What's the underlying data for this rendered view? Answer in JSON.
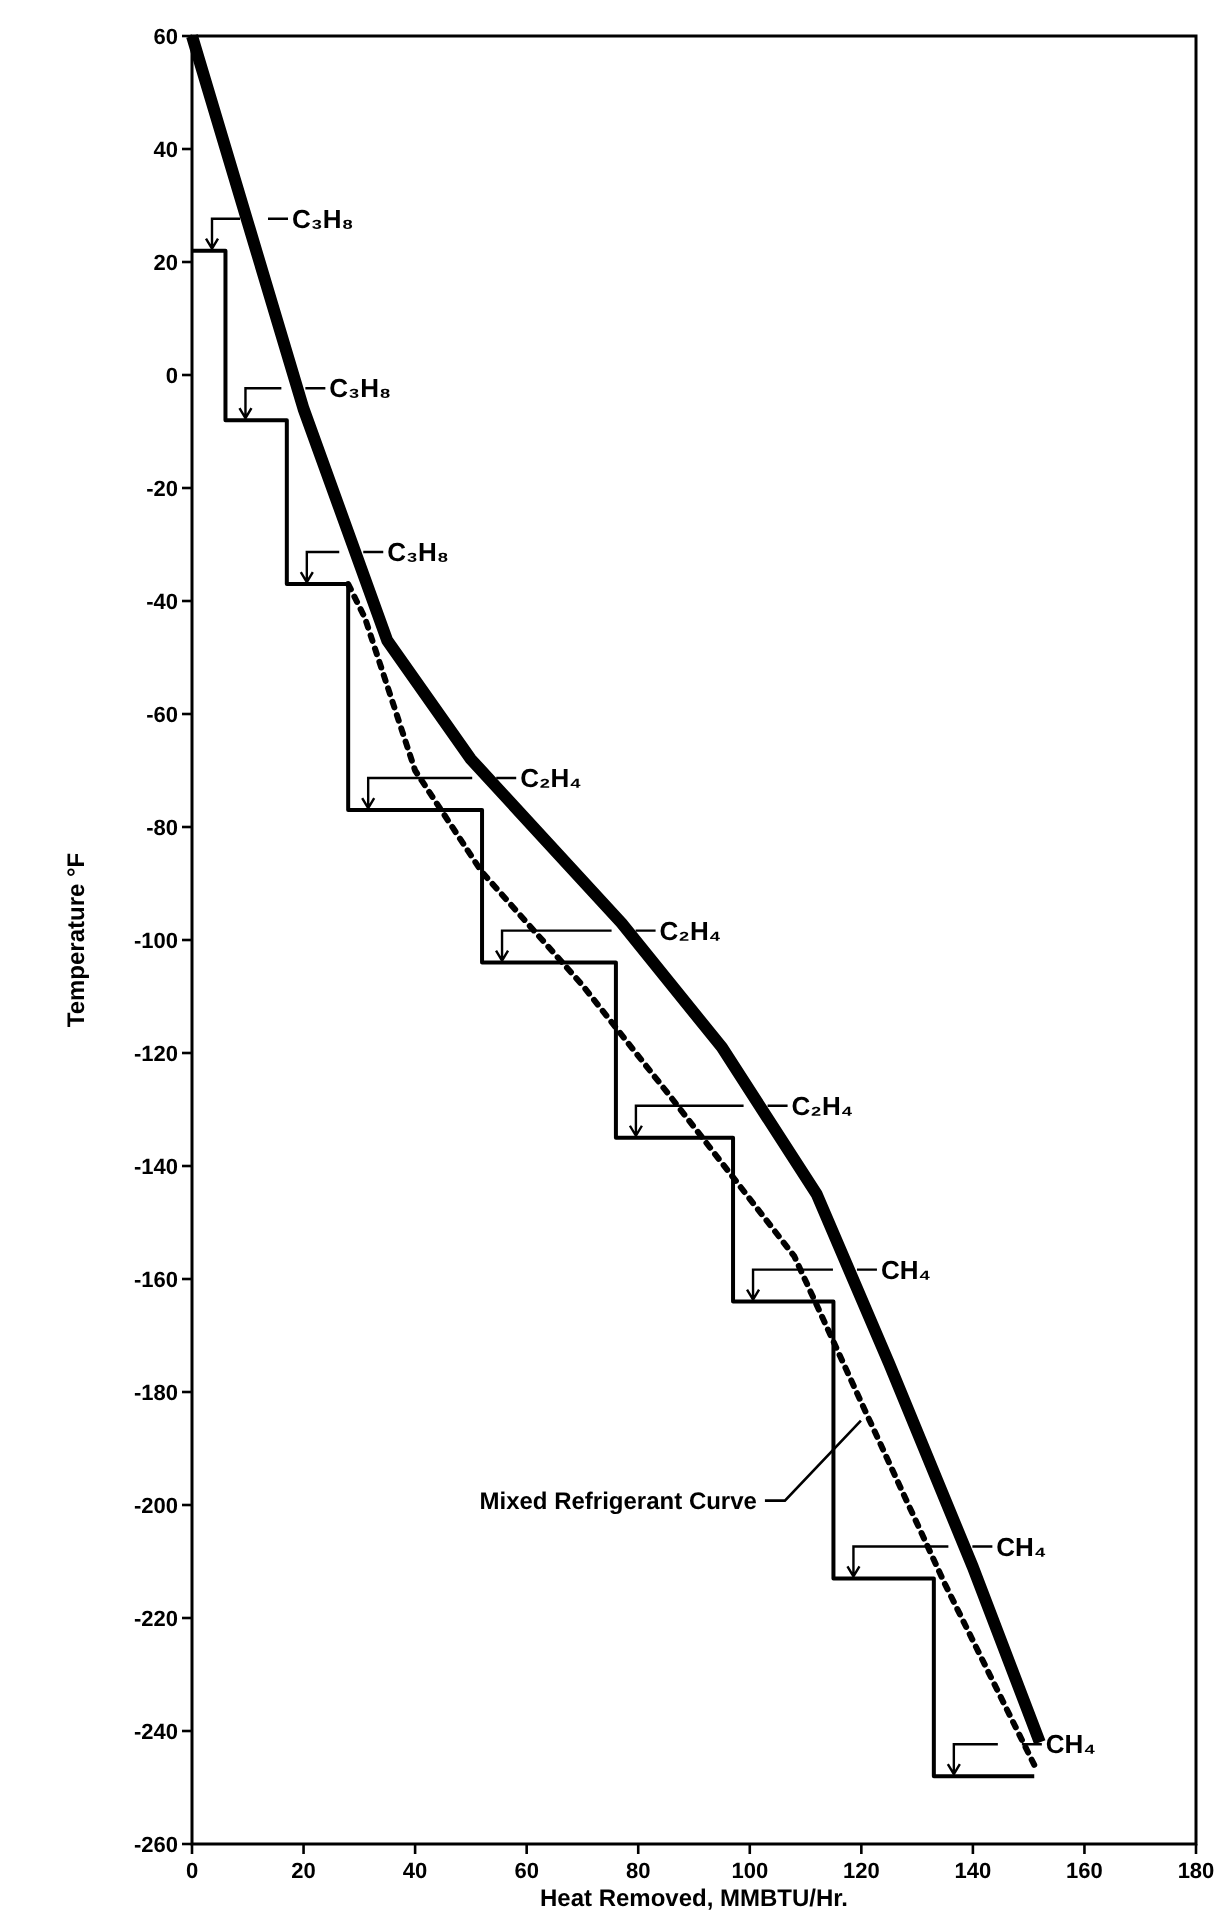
{
  "chart_data": {
    "type": "line",
    "xlabel": "Heat Removed, MMBTU/Hr.",
    "ylabel": "Temperature °F",
    "xlim": [
      0,
      180
    ],
    "ylim": [
      -260,
      60
    ],
    "xticks": [
      0,
      20,
      40,
      60,
      80,
      100,
      120,
      140,
      160,
      180
    ],
    "yticks": [
      60,
      40,
      20,
      0,
      -20,
      -40,
      -60,
      -80,
      -100,
      -120,
      -140,
      -160,
      -180,
      -200,
      -220,
      -240,
      -260
    ],
    "grid": false,
    "legend": false,
    "marker": "none",
    "series": [
      {
        "color": "#000000",
        "line_style": "solid",
        "x": [
          0,
          6,
          6,
          17,
          17,
          28,
          28,
          52,
          52,
          76,
          76,
          97,
          97,
          115,
          115,
          133,
          133,
          151
        ],
        "values": [
          22,
          22,
          -8,
          -8,
          -37,
          -37,
          -77,
          -77,
          -104,
          -104,
          -135,
          -135,
          -164,
          -164,
          -213,
          -213,
          -248,
          -248
        ]
      },
      {
        "color": "#000000",
        "line_style": "solid",
        "x": [
          0,
          10,
          20,
          35,
          50,
          77,
          95,
          112,
          125,
          140,
          152
        ],
        "values": [
          60,
          27,
          -6,
          -47,
          -68,
          -97,
          -119,
          -145,
          -175,
          -211,
          -242
        ]
      },
      {
        "name": "Mixed Refrigerant Curve",
        "color": "#000000",
        "line_style": "dotted",
        "x": [
          28,
          31,
          40,
          52,
          70,
          86,
          108,
          121,
          135,
          151
        ],
        "values": [
          -37,
          -43,
          -70,
          -88,
          -108,
          -128,
          -156,
          -184,
          -214,
          -246
        ]
      }
    ],
    "annotations": [
      "C₃H₈",
      "C₃H₈",
      "C₃H₈",
      "C₂H₄",
      "C₂H₄",
      "C₂H₄",
      "CH₄",
      "CH₄",
      "CH₄"
    ]
  }
}
